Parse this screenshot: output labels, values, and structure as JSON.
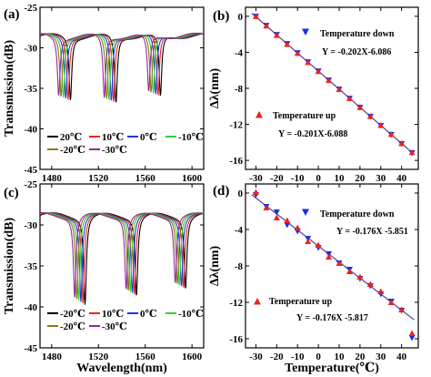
{
  "chart_data": [
    {
      "panel": "(a)",
      "type": "line",
      "xlabel": "",
      "ylabel": "Transmission(dB)",
      "xlim": [
        1470,
        1610
      ],
      "ylim": [
        -45,
        -25
      ],
      "xticks": [
        "1480",
        "1520",
        "1560",
        "1600"
      ],
      "yticks": [
        "-25",
        "-30",
        "-35",
        "-40",
        "-45"
      ],
      "base_level": -28.5,
      "dips": [
        {
          "center": 1492,
          "depth": -36.3
        },
        {
          "center": 1531,
          "depth": -36.8
        },
        {
          "center": 1569,
          "depth": -36.2
        }
      ],
      "series": [
        {
          "name": "20℃",
          "color": "#000000",
          "shift": 4.0
        },
        {
          "name": "10℃",
          "color": "#e8251c",
          "shift": 2.0
        },
        {
          "name": "0℃",
          "color": "#1f39e0",
          "shift": 0.0
        },
        {
          "name": "-10℃",
          "color": "#2fcf38",
          "shift": -2.0
        },
        {
          "name": "-20℃",
          "color": "#8a7a12",
          "shift": -4.0
        },
        {
          "name": "-30℃",
          "color": "#8f2a9a",
          "shift": -6.0
        }
      ]
    },
    {
      "panel": "(b)",
      "type": "scatter",
      "xlabel": "",
      "ylabel": "Δλ(nm)",
      "xlim": [
        -35,
        48
      ],
      "ylim": [
        -17,
        1
      ],
      "xticks": [
        "-30",
        "-20",
        "-10",
        "0",
        "10",
        "20",
        "30",
        "40"
      ],
      "yticks": [
        "0",
        "-4",
        "-8",
        "-12",
        "-16"
      ],
      "series": [
        {
          "name": "Temperature down",
          "marker": "triangle-down",
          "color": "#1a2fe0",
          "x": [
            -30,
            -25,
            -20,
            -15,
            -10,
            -5,
            0,
            5,
            10,
            15,
            20,
            25,
            30,
            35,
            40,
            45
          ],
          "y": [
            -0.03,
            -1.03,
            -2.05,
            -3.06,
            -4.07,
            -5.08,
            -6.09,
            -7.1,
            -8.11,
            -9.12,
            -10.13,
            -11.14,
            -12.15,
            -13.16,
            -14.17,
            -15.18
          ]
        },
        {
          "name": "Temperature up",
          "marker": "triangle-up",
          "color": "#e8251c",
          "x": [
            -30,
            -25,
            -20,
            -15,
            -10,
            -5,
            0,
            5,
            10,
            15,
            20,
            25,
            30,
            35,
            40,
            45
          ],
          "y": [
            0.0,
            -1.05,
            -2.1,
            -3.1,
            -4.1,
            -5.1,
            -6.1,
            -7.1,
            -8.1,
            -9.1,
            -10.1,
            -11.1,
            -12.1,
            -13.1,
            -14.1,
            -15.1
          ]
        }
      ],
      "fit": {
        "slope": -0.201,
        "intercept": -6.088,
        "color": "#6a4a9a"
      },
      "annotations": [
        "Temperature down",
        "Y = -0.202X-6.086",
        "Temperature up",
        "Y = -0.201X-6.088"
      ]
    },
    {
      "panel": "(c)",
      "type": "line",
      "xlabel": "Wavelength(nm)",
      "ylabel": "Transmission(dB)",
      "xlim": [
        1470,
        1610
      ],
      "ylim": [
        -45,
        -25
      ],
      "xticks": [
        "1480",
        "1520",
        "1560",
        "1600"
      ],
      "yticks": [
        "-25",
        "-30",
        "-35",
        "-40",
        "-45"
      ],
      "base_level": -28.8,
      "dips": [
        {
          "center": 1505,
          "depth": -39.5
        },
        {
          "center": 1549,
          "depth": -38.4
        },
        {
          "center": 1591,
          "depth": -37.5
        }
      ],
      "series": [
        {
          "name": "-20℃",
          "color": "#000000",
          "shift": 3.5
        },
        {
          "name": "10℃",
          "color": "#e8251c",
          "shift": 1.8
        },
        {
          "name": "0℃",
          "color": "#1f39e0",
          "shift": 0.0
        },
        {
          "name": "-10℃",
          "color": "#2fcf38",
          "shift": -1.8
        },
        {
          "name": "-20℃",
          "color": "#8a7a12",
          "shift": -3.5
        },
        {
          "name": "-30℃",
          "color": "#8f2a9a",
          "shift": -5.3
        }
      ]
    },
    {
      "panel": "(d)",
      "type": "scatter",
      "xlabel": "Temperature(℃)",
      "ylabel": "Δλ(nm)",
      "xlim": [
        -35,
        48
      ],
      "ylim": [
        -17,
        1
      ],
      "xticks": [
        "-30",
        "-20",
        "-10",
        "0",
        "10",
        "20",
        "30",
        "40"
      ],
      "yticks": [
        "0",
        "-4",
        "-8",
        "-12",
        "-16"
      ],
      "series": [
        {
          "name": "Temperature down",
          "marker": "triangle-down",
          "color": "#1a2fe0",
          "x": [
            -30,
            -25,
            -20,
            -15,
            -10,
            -5,
            0,
            5,
            10,
            15,
            20,
            25,
            30,
            35,
            40,
            45
          ],
          "y": [
            -0.2,
            -1.5,
            -2.1,
            -3.5,
            -4.2,
            -5.0,
            -6.0,
            -6.7,
            -7.7,
            -8.4,
            -9.4,
            -10.2,
            -11.1,
            -11.9,
            -12.9,
            -15.9
          ]
        },
        {
          "name": "Temperature up",
          "marker": "triangle-up",
          "color": "#e8251c",
          "x": [
            -30,
            -25,
            -20,
            -15,
            -10,
            -5,
            0,
            5,
            10,
            15,
            20,
            25,
            30,
            35,
            40,
            45
          ],
          "y": [
            0.1,
            -1.6,
            -2.7,
            -3.0,
            -3.8,
            -5.3,
            -5.7,
            -7.0,
            -7.7,
            -8.6,
            -9.2,
            -10.0,
            -10.8,
            -12.0,
            -12.8,
            -15.4
          ]
        }
      ],
      "fit": {
        "slope": -0.176,
        "intercept": -5.817,
        "color": "#6a4a9a"
      },
      "annotations": [
        "Temperature down",
        "Y = -0.176X -5.851",
        "Temperature up",
        "Y = -0.176X -5.817"
      ]
    }
  ]
}
